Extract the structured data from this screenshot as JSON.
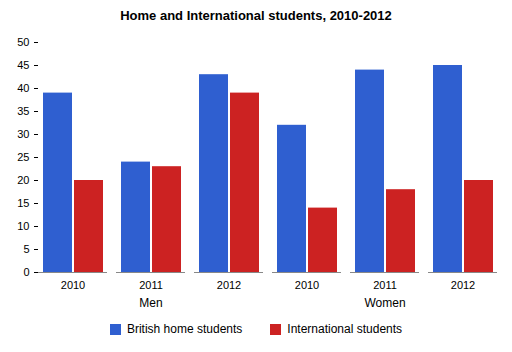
{
  "chart_data": {
    "type": "bar",
    "title": "Home and International students, 2010-2012",
    "categories": [
      "2010",
      "2011",
      "2012",
      "2010",
      "2011",
      "2012"
    ],
    "category_groups": [
      "Men",
      "Men",
      "Men",
      "Women",
      "Women",
      "Women"
    ],
    "series": [
      {
        "name": "British home students",
        "color": "#2f5fd0",
        "values": [
          39,
          24,
          43,
          32,
          44,
          45
        ]
      },
      {
        "name": "International students",
        "color": "#cc2222",
        "values": [
          20,
          23,
          39,
          14,
          18,
          20
        ]
      }
    ],
    "ylim": [
      0,
      50
    ],
    "yticks": [
      0,
      5,
      10,
      15,
      20,
      25,
      30,
      35,
      40,
      45,
      50
    ],
    "grid": false,
    "legend": "bottom"
  }
}
